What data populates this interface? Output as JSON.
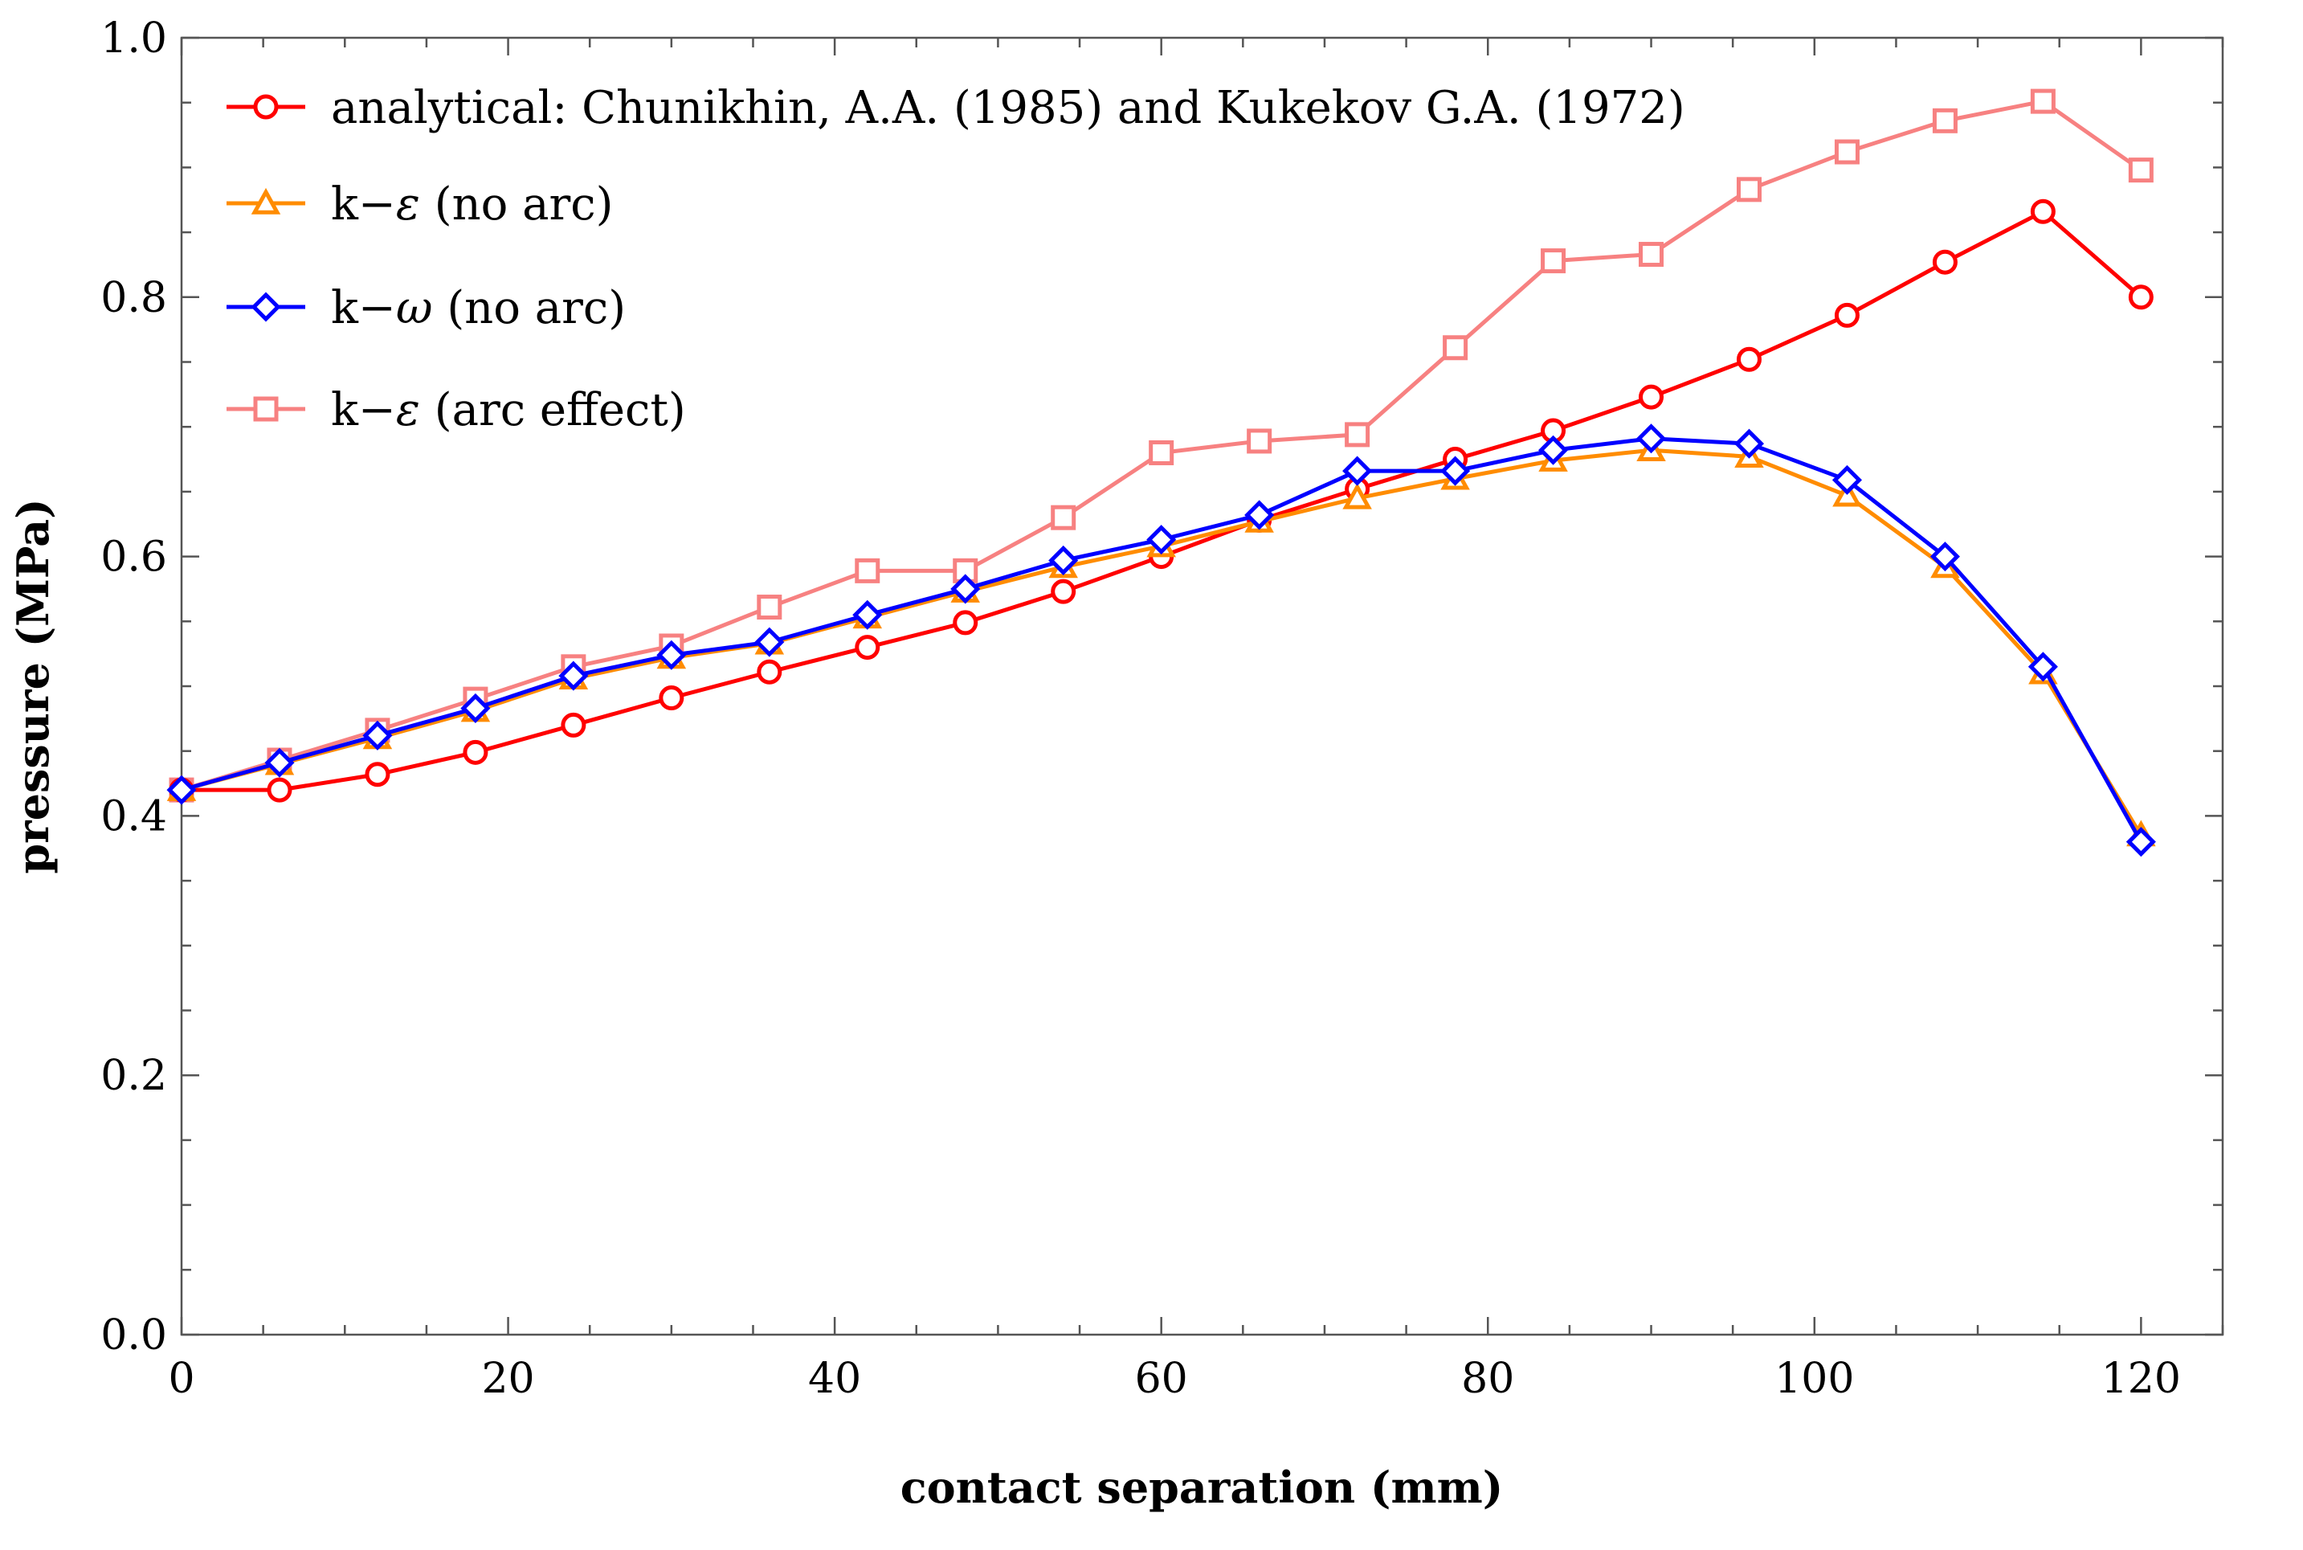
{
  "chart_data": {
    "type": "line",
    "title": "",
    "xlabel": "contact separation (mm)",
    "ylabel": "pressure (MPa)",
    "xlim": [
      0,
      125
    ],
    "ylim": [
      0.0,
      1.0
    ],
    "xticks": [
      0,
      20,
      40,
      60,
      80,
      100,
      120
    ],
    "yticks": [
      0.0,
      0.2,
      0.4,
      0.6,
      0.8,
      1.0
    ],
    "xtick_labels": [
      "0",
      "20",
      "40",
      "60",
      "80",
      "100",
      "120"
    ],
    "ytick_labels": [
      "0.0",
      "0.2",
      "0.4",
      "0.6",
      "0.8",
      "1.0"
    ],
    "grid": false,
    "legend_position": "top-left",
    "x": [
      0,
      6,
      12,
      18,
      24,
      30,
      36,
      42,
      48,
      54,
      60,
      66,
      72,
      78,
      84,
      90,
      96,
      102,
      108,
      114,
      120
    ],
    "series": [
      {
        "name": "analytical: Chunikhin, A.A. (1985) and Kukekov G.A. (1972)",
        "color": "#ff0000",
        "marker": "circle",
        "values": [
          0.42,
          0.42,
          0.432,
          0.449,
          0.47,
          0.491,
          0.511,
          0.53,
          0.549,
          0.573,
          0.6,
          0.628,
          0.652,
          0.675,
          0.697,
          0.723,
          0.752,
          0.786,
          0.827,
          0.866,
          0.8
        ]
      },
      {
        "name": "k−ε (no arc)",
        "name_prefix": "k−",
        "name_symbol": "ε",
        "name_suffix": " (no arc)",
        "color": "#ff8c00",
        "marker": "triangle",
        "values": [
          0.42,
          0.44,
          0.46,
          0.481,
          0.506,
          0.522,
          0.533,
          0.553,
          0.573,
          0.592,
          0.608,
          0.627,
          0.645,
          0.66,
          0.674,
          0.682,
          0.677,
          0.647,
          0.592,
          0.51,
          0.385
        ]
      },
      {
        "name": "k−ω (no arc)",
        "name_prefix": "k−",
        "name_symbol": "ω",
        "name_suffix": " (no arc)",
        "color": "#0000ff",
        "marker": "diamond",
        "values": [
          0.42,
          0.441,
          0.462,
          0.483,
          0.508,
          0.524,
          0.534,
          0.555,
          0.575,
          0.597,
          0.613,
          0.632,
          0.666,
          0.666,
          0.682,
          0.691,
          0.687,
          0.659,
          0.6,
          0.515,
          0.38
        ]
      },
      {
        "name": "k−ε (arc effect)",
        "name_prefix": "k−",
        "name_symbol": "ε",
        "name_suffix": " (arc effect)",
        "color": "#f78181",
        "marker": "square",
        "values": [
          0.42,
          0.443,
          0.466,
          0.49,
          0.515,
          0.531,
          0.561,
          0.589,
          0.589,
          0.63,
          0.68,
          0.689,
          0.694,
          0.761,
          0.828,
          0.833,
          0.883,
          0.912,
          0.936,
          0.951,
          0.898
        ]
      }
    ]
  }
}
